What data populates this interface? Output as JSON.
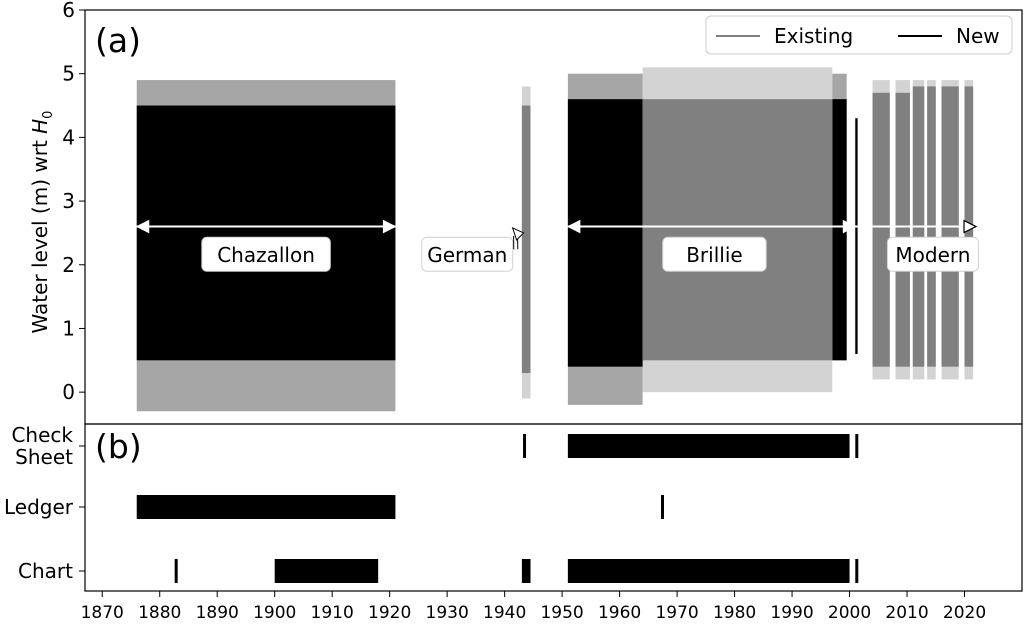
{
  "chart_data": [
    {
      "panel": "(a)",
      "type": "area",
      "ylabel_prefix": "Water level (m) wrt ",
      "ylabel_symbol": "H",
      "ylabel_subscript": "0",
      "xlim": [
        1867,
        2030
      ],
      "ylim": [
        -0.5,
        6
      ],
      "yticks": [
        0,
        1,
        2,
        3,
        4,
        5,
        6
      ],
      "legend": {
        "position": "top-right",
        "entries": [
          {
            "name": "Existing",
            "color": "#808080"
          },
          {
            "name": "New",
            "color": "#000000"
          }
        ]
      },
      "series": [
        {
          "name": "New",
          "color": "#000000",
          "segments": [
            {
              "x": [
                1876,
                1921
              ],
              "low": 0.5,
              "high": 4.5,
              "max": 4.9,
              "min": -0.3
            },
            {
              "x": [
                1951,
                1964
              ],
              "low": 0.4,
              "high": 4.6,
              "max": 5.0,
              "min": -0.2
            },
            {
              "x": [
                1997,
                1999.5
              ],
              "low": 0.5,
              "high": 4.6,
              "max": 5.0,
              "min": 0.5
            },
            {
              "x": [
                2001,
                2001.4
              ],
              "low": 0.6,
              "high": 4.3,
              "max": 4.3,
              "min": 0.6
            }
          ]
        },
        {
          "name": "Existing",
          "color": "#808080",
          "segments": [
            {
              "x": [
                1943,
                1944.5
              ],
              "low": 0.3,
              "high": 4.5,
              "max": 4.8,
              "min": -0.1
            },
            {
              "x": [
                1964,
                1997
              ],
              "low": 0.5,
              "high": 4.6,
              "max": 5.1,
              "min": 0.0
            },
            {
              "x": [
                2004,
                2007
              ],
              "low": 0.4,
              "high": 4.7,
              "max": 4.9,
              "min": 0.2
            },
            {
              "x": [
                2008,
                2010.5
              ],
              "low": 0.4,
              "high": 4.7,
              "max": 4.9,
              "min": 0.2
            },
            {
              "x": [
                2011,
                2013
              ],
              "low": 0.4,
              "high": 4.8,
              "max": 4.9,
              "min": 0.2
            },
            {
              "x": [
                2013.5,
                2015
              ],
              "low": 0.4,
              "high": 4.8,
              "max": 4.9,
              "min": 0.2
            },
            {
              "x": [
                2016,
                2019
              ],
              "low": 0.4,
              "high": 4.8,
              "max": 4.9,
              "min": 0.2
            },
            {
              "x": [
                2020,
                2021.5
              ],
              "low": 0.4,
              "high": 4.8,
              "max": 4.9,
              "min": 0.2
            }
          ]
        }
      ],
      "annotations": [
        {
          "text": "Chazallon",
          "x": 1898.5,
          "y": 2.15,
          "arrow": {
            "x": [
              1876,
              1921
            ],
            "y": 2.6
          }
        },
        {
          "text": "German",
          "x": 1933.5,
          "y": 2.15,
          "pointer_to": {
            "x": 1943.3,
            "y": 2.5
          }
        },
        {
          "text": "Brillie",
          "x": 1976.5,
          "y": 2.15,
          "arrow": {
            "x": [
              1951,
              2001
            ],
            "y": 2.6
          }
        },
        {
          "text": "Modern",
          "x": 2014.5,
          "y": 2.15,
          "arrow": {
            "x": [
              2001,
              2022
            ],
            "y": 2.6
          }
        }
      ]
    },
    {
      "panel": "(b)",
      "type": "bar",
      "categories": [
        "Chart",
        "Ledger",
        "Check\nSheet"
      ],
      "category_lines": [
        [
          "Chart"
        ],
        [
          "Ledger"
        ],
        [
          "Check",
          "Sheet"
        ]
      ],
      "xticks": [
        1870,
        1880,
        1890,
        1900,
        1910,
        1920,
        1930,
        1940,
        1950,
        1960,
        1970,
        1980,
        1990,
        2000,
        2010,
        2020
      ],
      "intervals": {
        "Check\nSheet": [
          [
            1943.2,
            1943.5
          ],
          [
            1951,
            2000
          ],
          [
            2001,
            2001.5
          ]
        ],
        "Ledger": [
          [
            1876,
            1921
          ],
          [
            1967.2,
            1967.6
          ]
        ],
        "Chart": [
          [
            1882.6,
            1882.9
          ],
          [
            1900,
            1918
          ],
          [
            1943,
            1944.5
          ],
          [
            1951,
            2000
          ],
          [
            2001,
            2001.5
          ]
        ]
      }
    }
  ]
}
